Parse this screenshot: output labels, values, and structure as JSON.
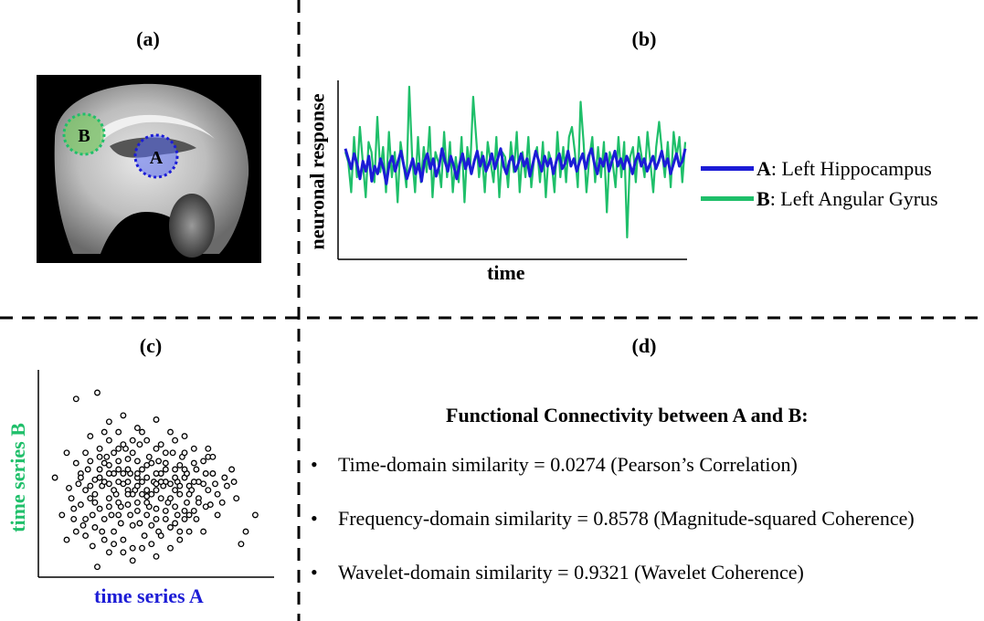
{
  "panels": {
    "a": {
      "label": "(a)",
      "markers": {
        "a": "A",
        "b": "B"
      }
    },
    "b": {
      "label": "(b)",
      "ylabel": "neuronal response",
      "xlabel": "time",
      "legend": [
        {
          "key": "A",
          "text": ": Left Hippocampus",
          "color": "#1c1cd6"
        },
        {
          "key": "B",
          "text": ": Left Angular Gyrus",
          "color": "#1fbf6a"
        }
      ]
    },
    "c": {
      "label": "(c)",
      "xlabel": "time series A",
      "ylabel": "time series B",
      "xlabel_color": "#1c1cd6",
      "ylabel_color": "#1fbf6a"
    },
    "d": {
      "label": "(d)",
      "heading": "Functional Connectivity between A and B:",
      "bullet": "•",
      "items": [
        "Time-domain similarity = 0.0274 (Pearson’s Correlation)",
        "Frequency-domain similarity = 0.8578 (Magnitude-squared Coherence)",
        "Wavelet-domain similarity = 0.9321 (Wavelet Coherence)"
      ]
    }
  },
  "chart_data": [
    {
      "type": "line",
      "xlabel": "time",
      "ylabel": "neuronal response",
      "series": [
        {
          "name": "A: Left Hippocampus",
          "color": "#1c1cd6",
          "values": [
            0.55,
            0.35,
            0.15,
            0.45,
            0.25,
            -0.05,
            0.3,
            0.1,
            0.4,
            -0.1,
            0.2,
            0.05,
            0.35,
            0.15,
            -0.15,
            0.25,
            0.4,
            0.1,
            0.3,
            0.5,
            0.2,
            -0.05,
            0.15,
            0.35,
            0.05,
            0.25,
            -0.1,
            0.3,
            0.45,
            0.15,
            0.35,
            0.0,
            0.2,
            0.55,
            0.3,
            0.1,
            0.4,
            0.2,
            -0.05,
            0.25,
            0.45,
            0.15,
            0.35,
            0.05,
            0.3,
            0.5,
            0.2,
            0.4,
            0.1,
            0.25,
            0.45,
            0.15,
            0.35,
            0.55,
            0.2,
            0.05,
            0.3,
            0.4,
            0.1,
            0.25,
            0.45,
            0.2,
            0.35,
            0.0,
            0.25,
            0.5,
            0.3,
            0.1,
            0.4,
            0.2,
            0.35,
            0.05,
            0.3,
            0.45,
            0.15,
            0.25,
            0.5,
            0.2,
            0.35,
            0.1,
            0.3,
            0.45,
            0.15,
            0.4,
            0.55,
            0.25,
            0.05,
            0.35,
            0.2,
            0.45,
            0.1,
            0.3,
            0.5,
            0.2,
            0.35,
            0.15,
            0.4,
            0.25,
            0.05,
            0.3,
            0.45,
            0.2,
            0.35,
            0.1,
            0.25,
            0.4,
            0.15,
            0.3,
            0.5,
            0.2,
            0.35,
            0.05,
            0.25,
            0.45,
            0.2,
            0.3,
            0.55
          ]
        },
        {
          "name": "B: Left Angular Gyrus",
          "color": "#1fbf6a",
          "values": [
            0.3,
            0.1,
            -0.5,
            0.6,
            -0.2,
            0.8,
            0.1,
            -0.6,
            0.5,
            0.3,
            -0.3,
            1.0,
            -0.1,
            0.4,
            -0.5,
            0.7,
            -0.2,
            0.3,
            -0.7,
            0.5,
            0.1,
            -0.4,
            1.6,
            0.2,
            -0.5,
            0.6,
            -0.3,
            0.4,
            -0.1,
            0.8,
            -0.6,
            0.3,
            0.1,
            -0.4,
            0.7,
            -0.2,
            0.5,
            -0.5,
            0.2,
            -0.3,
            0.6,
            -0.7,
            0.4,
            0.0,
            1.4,
            0.6,
            -0.2,
            0.3,
            -0.5,
            0.5,
            0.1,
            -0.3,
            0.6,
            -0.6,
            0.3,
            0.2,
            -0.4,
            0.5,
            -0.1,
            0.7,
            -0.5,
            0.3,
            -0.2,
            0.6,
            -0.4,
            0.2,
            0.4,
            -0.3,
            0.5,
            -0.6,
            0.3,
            0.1,
            -0.5,
            0.7,
            -0.2,
            0.4,
            -0.3,
            0.6,
            0.8,
            0.3,
            -0.4,
            1.3,
            0.5,
            -0.5,
            0.2,
            0.6,
            -0.3,
            0.4,
            -0.2,
            0.5,
            -0.9,
            0.3,
            0.1,
            -0.4,
            0.6,
            -0.2,
            0.5,
            -1.4,
            0.2,
            0.4,
            -0.3,
            0.6,
            0.2,
            -0.2,
            0.7,
            0.1,
            -0.5,
            0.4,
            0.9,
            0.3,
            -0.2,
            0.5,
            -0.4,
            0.7,
            0.2,
            0.6,
            -0.3,
            0.5
          ]
        }
      ]
    },
    {
      "type": "scatter",
      "xlabel": "time series A",
      "ylabel": "time series B",
      "points": [
        [
          0.16,
          0.86
        ],
        [
          0.25,
          0.89
        ],
        [
          0.07,
          0.48
        ],
        [
          0.12,
          0.6
        ],
        [
          0.16,
          0.55
        ],
        [
          0.13,
          0.43
        ],
        [
          0.18,
          0.5
        ],
        [
          0.2,
          0.6
        ],
        [
          0.22,
          0.68
        ],
        [
          0.24,
          0.47
        ],
        [
          0.26,
          0.62
        ],
        [
          0.28,
          0.55
        ],
        [
          0.3,
          0.66
        ],
        [
          0.32,
          0.5
        ],
        [
          0.34,
          0.7
        ],
        [
          0.36,
          0.45
        ],
        [
          0.38,
          0.57
        ],
        [
          0.4,
          0.6
        ],
        [
          0.42,
          0.48
        ],
        [
          0.44,
          0.52
        ],
        [
          0.46,
          0.39
        ],
        [
          0.48,
          0.55
        ],
        [
          0.5,
          0.42
        ],
        [
          0.52,
          0.5
        ],
        [
          0.54,
          0.6
        ],
        [
          0.56,
          0.45
        ],
        [
          0.6,
          0.54
        ],
        [
          0.64,
          0.44
        ],
        [
          0.68,
          0.38
        ],
        [
          0.72,
          0.58
        ],
        [
          0.76,
          0.4
        ],
        [
          0.82,
          0.52
        ],
        [
          0.88,
          0.22
        ],
        [
          0.92,
          0.3
        ],
        [
          0.86,
          0.16
        ],
        [
          0.7,
          0.22
        ],
        [
          0.6,
          0.18
        ],
        [
          0.5,
          0.1
        ],
        [
          0.45,
          0.2
        ],
        [
          0.4,
          0.14
        ],
        [
          0.35,
          0.26
        ],
        [
          0.3,
          0.12
        ],
        [
          0.25,
          0.05
        ],
        [
          0.2,
          0.2
        ],
        [
          0.15,
          0.28
        ],
        [
          0.1,
          0.3
        ],
        [
          0.18,
          0.35
        ],
        [
          0.22,
          0.38
        ],
        [
          0.26,
          0.33
        ],
        [
          0.3,
          0.38
        ],
        [
          0.34,
          0.3
        ],
        [
          0.38,
          0.35
        ],
        [
          0.42,
          0.32
        ],
        [
          0.46,
          0.3
        ],
        [
          0.5,
          0.33
        ],
        [
          0.54,
          0.28
        ],
        [
          0.58,
          0.34
        ],
        [
          0.62,
          0.28
        ],
        [
          0.66,
          0.32
        ],
        [
          0.3,
          0.45
        ],
        [
          0.34,
          0.52
        ],
        [
          0.38,
          0.42
        ],
        [
          0.42,
          0.56
        ],
        [
          0.46,
          0.48
        ],
        [
          0.5,
          0.62
        ],
        [
          0.54,
          0.46
        ],
        [
          0.58,
          0.52
        ],
        [
          0.62,
          0.48
        ],
        [
          0.66,
          0.55
        ],
        [
          0.7,
          0.45
        ],
        [
          0.74,
          0.5
        ],
        [
          0.78,
          0.36
        ],
        [
          0.2,
          0.42
        ],
        [
          0.24,
          0.36
        ],
        [
          0.28,
          0.28
        ],
        [
          0.32,
          0.22
        ],
        [
          0.36,
          0.18
        ],
        [
          0.4,
          0.25
        ],
        [
          0.44,
          0.4
        ],
        [
          0.48,
          0.25
        ],
        [
          0.52,
          0.38
        ],
        [
          0.56,
          0.24
        ],
        [
          0.6,
          0.4
        ],
        [
          0.64,
          0.22
        ],
        [
          0.68,
          0.46
        ],
        [
          0.72,
          0.42
        ],
        [
          0.76,
          0.3
        ],
        [
          0.8,
          0.44
        ],
        [
          0.84,
          0.38
        ],
        [
          0.14,
          0.38
        ],
        [
          0.17,
          0.45
        ],
        [
          0.21,
          0.52
        ],
        [
          0.23,
          0.3
        ],
        [
          0.27,
          0.44
        ],
        [
          0.29,
          0.58
        ],
        [
          0.33,
          0.4
        ],
        [
          0.37,
          0.62
        ],
        [
          0.39,
          0.5
        ],
        [
          0.41,
          0.42
        ],
        [
          0.43,
          0.64
        ],
        [
          0.47,
          0.58
        ],
        [
          0.49,
          0.46
        ],
        [
          0.51,
          0.56
        ],
        [
          0.53,
          0.44
        ],
        [
          0.57,
          0.6
        ],
        [
          0.59,
          0.46
        ],
        [
          0.61,
          0.58
        ],
        [
          0.63,
          0.5
        ],
        [
          0.65,
          0.42
        ],
        [
          0.67,
          0.52
        ],
        [
          0.71,
          0.5
        ],
        [
          0.73,
          0.35
        ],
        [
          0.75,
          0.45
        ],
        [
          0.79,
          0.48
        ],
        [
          0.83,
          0.46
        ],
        [
          0.3,
          0.75
        ],
        [
          0.36,
          0.78
        ],
        [
          0.42,
          0.72
        ],
        [
          0.5,
          0.76
        ],
        [
          0.56,
          0.7
        ],
        [
          0.62,
          0.68
        ],
        [
          0.28,
          0.7
        ],
        [
          0.44,
          0.7
        ],
        [
          0.4,
          0.66
        ],
        [
          0.36,
          0.64
        ],
        [
          0.32,
          0.6
        ],
        [
          0.26,
          0.52
        ],
        [
          0.22,
          0.56
        ],
        [
          0.18,
          0.48
        ],
        [
          0.15,
          0.33
        ],
        [
          0.19,
          0.25
        ],
        [
          0.23,
          0.15
        ],
        [
          0.27,
          0.22
        ],
        [
          0.31,
          0.3
        ],
        [
          0.35,
          0.34
        ],
        [
          0.39,
          0.3
        ],
        [
          0.43,
          0.26
        ],
        [
          0.47,
          0.34
        ],
        [
          0.51,
          0.22
        ],
        [
          0.55,
          0.36
        ],
        [
          0.59,
          0.3
        ],
        [
          0.63,
          0.36
        ],
        [
          0.67,
          0.28
        ],
        [
          0.71,
          0.34
        ],
        [
          0.24,
          0.4
        ],
        [
          0.28,
          0.46
        ],
        [
          0.32,
          0.42
        ],
        [
          0.36,
          0.5
        ],
        [
          0.4,
          0.4
        ],
        [
          0.44,
          0.46
        ],
        [
          0.48,
          0.4
        ],
        [
          0.52,
          0.46
        ],
        [
          0.56,
          0.38
        ],
        [
          0.6,
          0.44
        ],
        [
          0.64,
          0.4
        ],
        [
          0.68,
          0.36
        ],
        [
          0.3,
          0.34
        ],
        [
          0.34,
          0.36
        ],
        [
          0.38,
          0.46
        ],
        [
          0.42,
          0.36
        ],
        [
          0.46,
          0.42
        ],
        [
          0.5,
          0.5
        ],
        [
          0.54,
          0.52
        ],
        [
          0.58,
          0.42
        ],
        [
          0.62,
          0.52
        ],
        [
          0.66,
          0.46
        ],
        [
          0.26,
          0.58
        ],
        [
          0.3,
          0.54
        ],
        [
          0.34,
          0.56
        ],
        [
          0.38,
          0.52
        ],
        [
          0.42,
          0.5
        ],
        [
          0.46,
          0.54
        ],
        [
          0.5,
          0.45
        ],
        [
          0.54,
          0.55
        ],
        [
          0.58,
          0.48
        ],
        [
          0.62,
          0.6
        ],
        [
          0.66,
          0.62
        ],
        [
          0.7,
          0.56
        ],
        [
          0.72,
          0.62
        ],
        [
          0.74,
          0.58
        ],
        [
          0.58,
          0.66
        ],
        [
          0.52,
          0.64
        ],
        [
          0.46,
          0.66
        ],
        [
          0.34,
          0.62
        ],
        [
          0.2,
          0.28
        ],
        [
          0.24,
          0.24
        ],
        [
          0.28,
          0.18
        ],
        [
          0.32,
          0.16
        ],
        [
          0.36,
          0.12
        ],
        [
          0.4,
          0.08
        ],
        [
          0.44,
          0.14
        ],
        [
          0.48,
          0.16
        ],
        [
          0.52,
          0.2
        ],
        [
          0.56,
          0.14
        ],
        [
          0.6,
          0.22
        ],
        [
          0.64,
          0.3
        ],
        [
          0.16,
          0.22
        ],
        [
          0.12,
          0.18
        ],
        [
          0.22,
          0.44
        ],
        [
          0.26,
          0.48
        ],
        [
          0.3,
          0.5
        ],
        [
          0.34,
          0.46
        ],
        [
          0.38,
          0.4
        ],
        [
          0.42,
          0.44
        ],
        [
          0.46,
          0.36
        ],
        [
          0.5,
          0.28
        ],
        [
          0.54,
          0.32
        ],
        [
          0.58,
          0.26
        ],
        [
          0.62,
          0.32
        ]
      ]
    }
  ]
}
